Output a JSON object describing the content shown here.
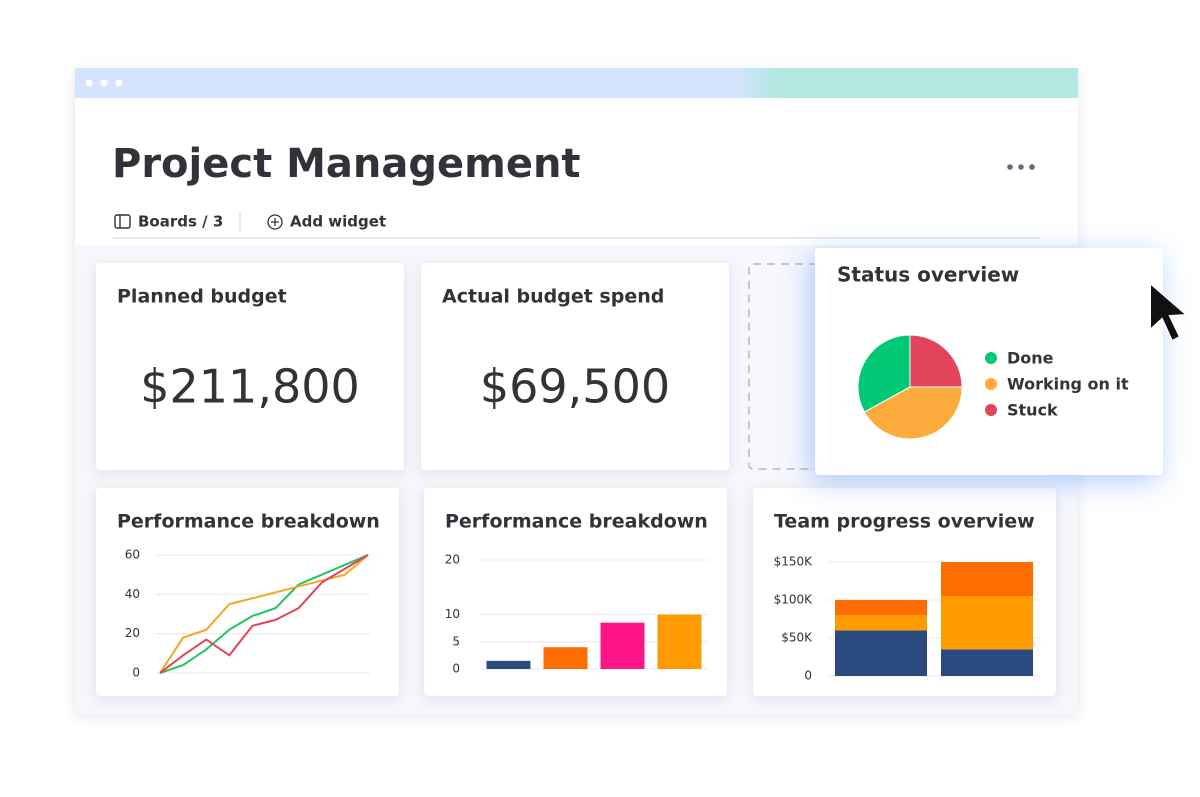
{
  "header": {
    "title": "Project Management",
    "boards": "Boards / 3",
    "add_widget": "Add widget"
  },
  "kpis": [
    {
      "title": "Planned budget",
      "value": "$211,800"
    },
    {
      "title": "Actual budget spend",
      "value": "$69,500"
    }
  ],
  "chart_data": [
    {
      "type": "pie",
      "title": "Status overview",
      "categories": [
        "Done",
        "Working on it",
        "Stuck"
      ],
      "values": [
        33,
        42,
        25
      ],
      "colors": [
        "#00c875",
        "#fdab3d",
        "#e2445c"
      ]
    },
    {
      "type": "line",
      "title": "Performance breakdown",
      "categories": [
        null,
        null,
        null,
        null,
        null,
        null,
        null,
        null,
        null,
        null
      ],
      "series": [
        {
          "color": "#22c55e",
          "values": [
            0,
            4,
            12,
            22,
            29,
            33,
            45,
            50,
            55,
            60
          ]
        },
        {
          "color": "#f5a623",
          "values": [
            0,
            18,
            22,
            35,
            38,
            41,
            44,
            47,
            50,
            60
          ]
        },
        {
          "color": "#e2445c",
          "values": [
            0,
            9,
            17,
            9,
            24,
            27,
            33,
            46,
            53,
            60
          ]
        }
      ],
      "ylim": [
        0,
        60
      ],
      "yticks": [
        0,
        20,
        40,
        60
      ],
      "grid": true
    },
    {
      "type": "bar",
      "title": "Performance breakdown",
      "categories": [
        null,
        null,
        null,
        null
      ],
      "values": [
        1.5,
        4,
        8.5,
        10
      ],
      "colors": [
        "#2b4a7e",
        "#ff6d00",
        "#ff158a",
        "#ff9a00"
      ],
      "ylim": [
        0,
        20
      ],
      "yticks": [
        0,
        5,
        10,
        20
      ],
      "grid": true
    },
    {
      "type": "stacked_bar",
      "title": "Team progress overview",
      "categories": [
        null,
        null
      ],
      "series": [
        {
          "color": "#2b4a7e",
          "values": [
            60000,
            35000
          ]
        },
        {
          "color": "#ff9a00",
          "values": [
            20000,
            70000
          ]
        },
        {
          "color": "#ff6d00",
          "values": [
            20000,
            45000
          ]
        }
      ],
      "ylim": [
        0,
        150000
      ],
      "yticks": [
        0,
        {
          "value": 50000,
          "label": "$50K"
        },
        {
          "value": 100000,
          "label": "$100K"
        },
        {
          "value": 150000,
          "label": "$150K"
        }
      ],
      "grid": true
    }
  ]
}
